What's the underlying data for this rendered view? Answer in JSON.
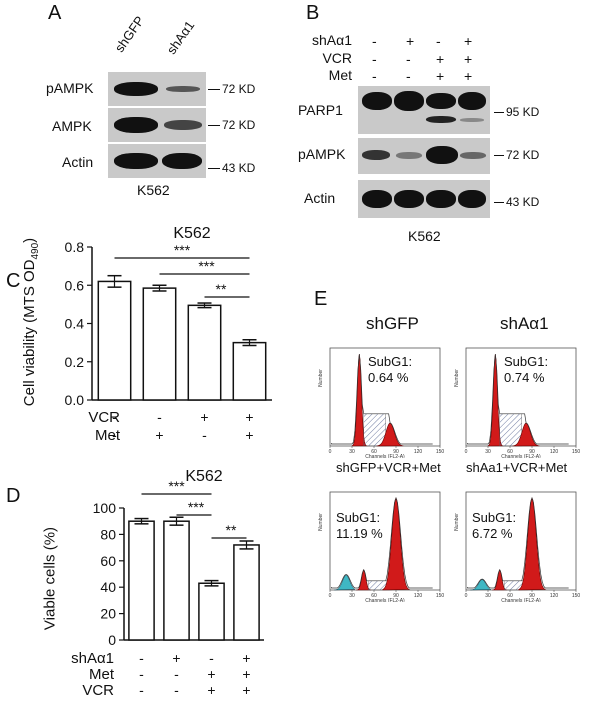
{
  "panels": {
    "A": "A",
    "B": "B",
    "C": "C",
    "D": "D",
    "E": "E"
  },
  "panel_a": {
    "lanes": [
      "shGFP",
      "shAα1"
    ],
    "rows": [
      "pAMPK",
      "AMPK",
      "Actin"
    ],
    "markers": [
      "72 KD",
      "72 KD",
      "43 KD"
    ],
    "cell_line": "K562"
  },
  "panel_b": {
    "conditions": [
      {
        "label": "shAα1",
        "values": [
          "-",
          "+",
          "-",
          "+"
        ]
      },
      {
        "label": "VCR",
        "values": [
          "-",
          "-",
          "+",
          "+"
        ]
      },
      {
        "label": "Met",
        "values": [
          "-",
          "-",
          "+",
          "+"
        ]
      }
    ],
    "rows": [
      "PARP1",
      "pAMPK",
      "Actin"
    ],
    "markers": [
      "95 KD",
      "72 KD",
      "43 KD"
    ],
    "cell_line": "K562"
  },
  "chart_data": [
    {
      "type": "bar",
      "panel": "C",
      "title": "K562",
      "ylabel": "Cell viability (MTS OD490)",
      "ylabel_main": "Cell viability (MTS OD",
      "ylabel_sub": "490",
      "ylabel_end": ")",
      "ylim": [
        0,
        0.8
      ],
      "yticks": [
        "0.0",
        "0.2",
        "0.4",
        "0.6",
        "0.8"
      ],
      "categories": [
        "1",
        "2",
        "3",
        "4"
      ],
      "values": [
        0.62,
        0.585,
        0.495,
        0.3
      ],
      "errors": [
        0.03,
        0.015,
        0.012,
        0.015
      ],
      "conditions": [
        {
          "label": "VCR",
          "values": [
            "-",
            "-",
            "+",
            "+"
          ]
        },
        {
          "label": "Met",
          "values": [
            "-",
            "+",
            "-",
            "+"
          ]
        }
      ],
      "significance": [
        "***",
        "***",
        "**"
      ]
    },
    {
      "type": "bar",
      "panel": "D",
      "title": "K562",
      "ylabel": "Viable cells (%)",
      "ylim": [
        0,
        100
      ],
      "yticks": [
        "0",
        "20",
        "40",
        "60",
        "80",
        "100"
      ],
      "categories": [
        "1",
        "2",
        "3",
        "4"
      ],
      "values": [
        90,
        90,
        43,
        72
      ],
      "errors": [
        2,
        3,
        2,
        3
      ],
      "conditions": [
        {
          "label": "shAα1",
          "values": [
            "-",
            "+",
            "-",
            "+"
          ]
        },
        {
          "label": "Met",
          "values": [
            "-",
            "-",
            "+",
            "+"
          ]
        },
        {
          "label": "VCR",
          "values": [
            "-",
            "-",
            "+",
            "+"
          ]
        }
      ],
      "significance": [
        "***",
        "***",
        "**"
      ]
    }
  ],
  "panel_e": {
    "plots": [
      {
        "title": "shGFP",
        "subg1_label": "SubG1:",
        "subg1_value": "0.64 %"
      },
      {
        "title": "shAα1",
        "subg1_label": "SubG1:",
        "subg1_value": "0.74 %"
      },
      {
        "title": "shGFP+VCR+Met",
        "subg1_label": "SubG1:",
        "subg1_value": "11.19 %"
      },
      {
        "title": "shAa1+VCR+Met",
        "subg1_label": "SubG1:",
        "subg1_value": "6.72 %"
      }
    ],
    "xlabel": "Channels (FL2-A)",
    "ylabel": "Number",
    "xticks": [
      "0",
      "30",
      "60",
      "90",
      "120",
      "150"
    ]
  },
  "colors": {
    "band": "#111111",
    "blot_bg": "#c9c9c9",
    "peak_red": "#d11a1a",
    "subg1_teal": "#3fb7c4",
    "hatch": "#4a5a8a"
  }
}
